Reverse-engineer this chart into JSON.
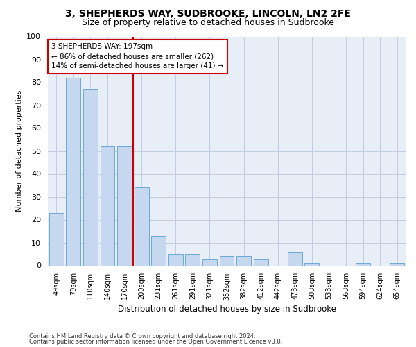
{
  "title": "3, SHEPHERDS WAY, SUDBROOKE, LINCOLN, LN2 2FE",
  "subtitle": "Size of property relative to detached houses in Sudbrooke",
  "xlabel": "Distribution of detached houses by size in Sudbrooke",
  "ylabel": "Number of detached properties",
  "categories": [
    "49sqm",
    "79sqm",
    "110sqm",
    "140sqm",
    "170sqm",
    "200sqm",
    "231sqm",
    "261sqm",
    "291sqm",
    "321sqm",
    "352sqm",
    "382sqm",
    "412sqm",
    "442sqm",
    "473sqm",
    "503sqm",
    "533sqm",
    "563sqm",
    "594sqm",
    "624sqm",
    "654sqm"
  ],
  "values": [
    23,
    82,
    77,
    52,
    52,
    34,
    13,
    5,
    5,
    3,
    4,
    4,
    3,
    0,
    6,
    1,
    0,
    0,
    1,
    0,
    1
  ],
  "bar_color": "#c5d8ef",
  "bar_edge_color": "#6aaad4",
  "reference_line_color": "#cc0000",
  "annotation_text": "3 SHEPHERDS WAY: 197sqm\n← 86% of detached houses are smaller (262)\n14% of semi-detached houses are larger (41) →",
  "annotation_box_color": "#ffffff",
  "annotation_box_edge_color": "#cc0000",
  "ylim": [
    0,
    100
  ],
  "yticks": [
    0,
    10,
    20,
    30,
    40,
    50,
    60,
    70,
    80,
    90,
    100
  ],
  "footer_line1": "Contains HM Land Registry data © Crown copyright and database right 2024.",
  "footer_line2": "Contains public sector information licensed under the Open Government Licence v3.0.",
  "bg_color": "#e8eef8",
  "grid_color": "#c0cce0",
  "title_fontsize": 10,
  "subtitle_fontsize": 9,
  "ylabel_fontsize": 8,
  "xlabel_fontsize": 8.5
}
